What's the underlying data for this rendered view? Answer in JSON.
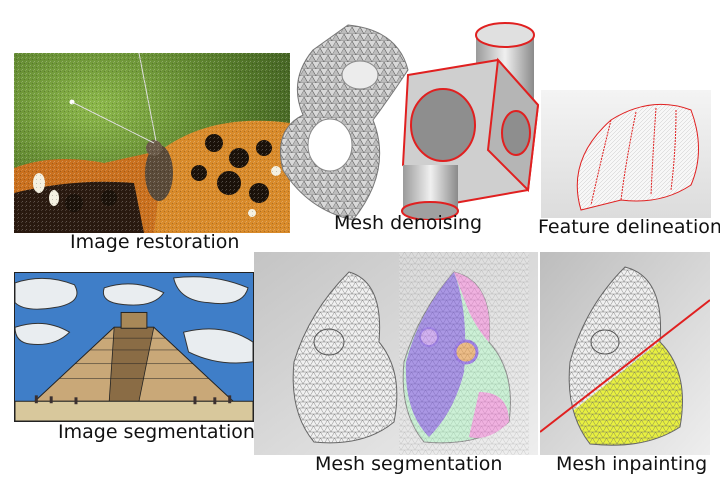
{
  "captions": {
    "image_restoration": "Image restoration",
    "mesh_denoising": "Mesh denoising",
    "feature_delineation": "Feature delineation",
    "image_segmentation": "Image segmentation",
    "mesh_segmentation": "Mesh segmentation",
    "mesh_inpainting": "Mesh inpainting"
  },
  "colors": {
    "feature_line": "#e02020",
    "segment_pink": "#f08fd8",
    "segment_purple": "#7a4fe0",
    "segment_green": "#b8f0c8",
    "segment_orange": "#e8a050",
    "inpaint_yellow": "#e8f040",
    "sky_blue": "#3f7ec8",
    "pyramid_tan": "#c9a878"
  }
}
